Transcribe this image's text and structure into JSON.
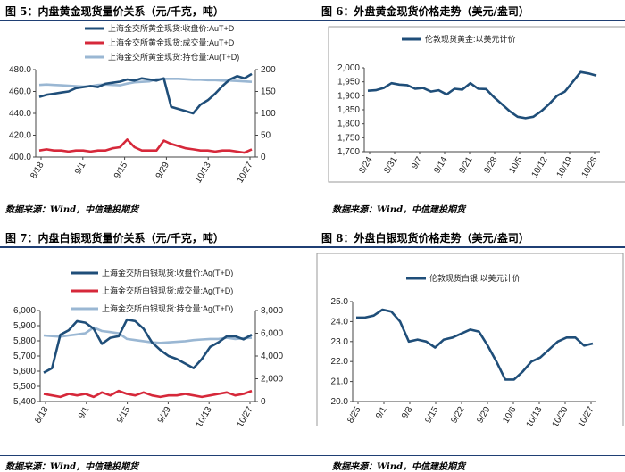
{
  "figures": [
    {
      "id": "fig5",
      "label": "图 5：内盘黄金现货量价关系（元/千克，吨）",
      "source": "数据来源：Wind，中信建投期货"
    },
    {
      "id": "fig6",
      "label": "图 6：外盘黄金现货价格走势（美元/盎司）",
      "source": "数据来源：Wind，中信建投期货"
    },
    {
      "id": "fig7",
      "label": "图 7：内盘白银现货量价关系（元/千克，吨）",
      "source": "数据来源：Wind，中信建投期货"
    },
    {
      "id": "fig8",
      "label": "图 8：外盘白银现货价格走势（美元/盎司）",
      "source": "数据来源：Wind，中信建投期货"
    }
  ],
  "chart_data": [
    {
      "id": "fig5",
      "type": "line",
      "legend": [
        "上海金交所黄金现货:收盘价:AuT+D",
        "上海金交所黄金现货:成交量:AuT+D",
        "上海金交所黄金现货:持仓量:Au(T+D)"
      ],
      "colors": [
        "#1f4e79",
        "#d6283a",
        "#9ab7d3"
      ],
      "x_ticks": [
        "8/18",
        "9/1",
        "9/15",
        "9/29",
        "10/13",
        "10/27"
      ],
      "left_axis": {
        "ylim": [
          400,
          480
        ],
        "ticks": [
          "400.0",
          "420.0",
          "440.0",
          "460.0",
          "480.0"
        ]
      },
      "right_axis": {
        "ylim": [
          0,
          200
        ],
        "ticks": [
          "0",
          "50",
          "100",
          "150",
          "200"
        ]
      },
      "series": [
        {
          "name": "上海金交所黄金现货:收盘价:AuT+D",
          "axis": "left",
          "values": [
            455,
            457,
            458,
            459,
            460,
            463,
            464,
            465,
            464,
            467,
            468,
            469,
            471,
            470,
            472,
            471,
            470,
            472,
            446,
            444,
            442,
            440,
            448,
            452,
            458,
            465,
            471,
            474,
            472,
            476
          ]
        },
        {
          "name": "上海金交所黄金现货:成交量:AuT+D",
          "axis": "left",
          "values": [
            406,
            407,
            406,
            406,
            405,
            406,
            406,
            405,
            406,
            406,
            408,
            409,
            416,
            409,
            406,
            406,
            406,
            415,
            412,
            410,
            408,
            407,
            406,
            406,
            405,
            406,
            406,
            405,
            404,
            407
          ]
        },
        {
          "name": "上海金交所黄金现货:持仓量:Au(T+D)",
          "axis": "right",
          "values": [
            165,
            166,
            165,
            164,
            163,
            162,
            161,
            162,
            165,
            166,
            165,
            164,
            168,
            171,
            172,
            173,
            178,
            179,
            179,
            179,
            178,
            177,
            177,
            176,
            176,
            175,
            175,
            174,
            173,
            172
          ]
        }
      ]
    },
    {
      "id": "fig6",
      "type": "line",
      "legend": [
        "伦敦现货黄金:以美元计价"
      ],
      "colors": [
        "#1f4e79"
      ],
      "x_ticks": [
        "8/24",
        "8/31",
        "9/7",
        "9/14",
        "9/21",
        "9/28",
        "10/5",
        "10/12",
        "10/19",
        "10/26"
      ],
      "left_axis": {
        "ylim": [
          1700,
          2000
        ],
        "ticks": [
          "1,700",
          "1,750",
          "1,800",
          "1,850",
          "1,900",
          "1,950",
          "2,000"
        ]
      },
      "series": [
        {
          "name": "伦敦现货黄金:以美元计价",
          "axis": "left",
          "values": [
            1918,
            1920,
            1928,
            1945,
            1940,
            1938,
            1925,
            1928,
            1915,
            1920,
            1905,
            1925,
            1922,
            1945,
            1925,
            1924,
            1895,
            1870,
            1845,
            1825,
            1820,
            1825,
            1845,
            1870,
            1900,
            1915,
            1950,
            1985,
            1980,
            1972
          ]
        }
      ]
    },
    {
      "id": "fig7",
      "type": "line",
      "legend": [
        "上海金交所白银现货:收盘价:Ag(T+D)",
        "上海金交所白银现货:成交量:Ag(T+D)",
        "上海金交所白银现货:持仓量:Ag(T+D)"
      ],
      "colors": [
        "#1f4e79",
        "#d6283a",
        "#9ab7d3"
      ],
      "x_ticks": [
        "8/18",
        "9/1",
        "9/15",
        "9/29",
        "10/13",
        "10/27"
      ],
      "left_axis": {
        "ylim": [
          5400,
          6000
        ],
        "ticks": [
          "5,400",
          "5,500",
          "5,600",
          "5,700",
          "5,800",
          "5,900",
          "6,000"
        ]
      },
      "right_axis": {
        "ylim": [
          0,
          8000
        ],
        "ticks": [
          "0",
          "2,000",
          "4,000",
          "6,000",
          "8,000"
        ]
      },
      "series": [
        {
          "name": "上海金交所白银现货:收盘价:Ag(T+D)",
          "axis": "left",
          "values": [
            5590,
            5620,
            5840,
            5870,
            5930,
            5920,
            5880,
            5780,
            5820,
            5830,
            5940,
            5930,
            5880,
            5790,
            5740,
            5700,
            5680,
            5650,
            5620,
            5680,
            5760,
            5790,
            5830,
            5830,
            5810,
            5840
          ]
        },
        {
          "name": "上海金交所白银现货:成交量:Ag(T+D)",
          "axis": "left",
          "values": [
            5450,
            5440,
            5430,
            5450,
            5440,
            5450,
            5430,
            5460,
            5440,
            5470,
            5450,
            5440,
            5460,
            5440,
            5430,
            5440,
            5440,
            5450,
            5440,
            5430,
            5440,
            5450,
            5460,
            5440,
            5450,
            5470
          ]
        },
        {
          "name": "上海金交所白银现货:持仓量:Ag(T+D)",
          "axis": "right",
          "values": [
            5800,
            5750,
            5700,
            5800,
            5900,
            6000,
            6500,
            6200,
            6100,
            6000,
            5500,
            5400,
            5300,
            5200,
            5150,
            5200,
            5250,
            5300,
            5400,
            5450,
            5500,
            5500,
            5600,
            5500,
            5550,
            5600
          ]
        }
      ]
    },
    {
      "id": "fig8",
      "type": "line",
      "legend": [
        "伦敦现货白银:以美元计价"
      ],
      "colors": [
        "#1f4e79"
      ],
      "x_ticks": [
        "8/25",
        "9/1",
        "9/8",
        "9/15",
        "9/22",
        "9/29",
        "10/6",
        "10/13",
        "10/20",
        "10/27"
      ],
      "left_axis": {
        "ylim": [
          20,
          25
        ],
        "ticks": [
          "20.0",
          "21.0",
          "22.0",
          "23.0",
          "24.0",
          "25.0"
        ]
      },
      "series": [
        {
          "name": "伦敦现货白银:以美元计价",
          "axis": "left",
          "values": [
            24.2,
            24.2,
            24.3,
            24.6,
            24.5,
            24.0,
            23.0,
            23.1,
            23.0,
            22.7,
            23.1,
            23.2,
            23.4,
            23.6,
            23.5,
            22.8,
            22.0,
            21.1,
            21.1,
            21.5,
            22.0,
            22.2,
            22.6,
            23.0,
            23.2,
            23.2,
            22.8,
            22.9
          ]
        }
      ]
    }
  ]
}
